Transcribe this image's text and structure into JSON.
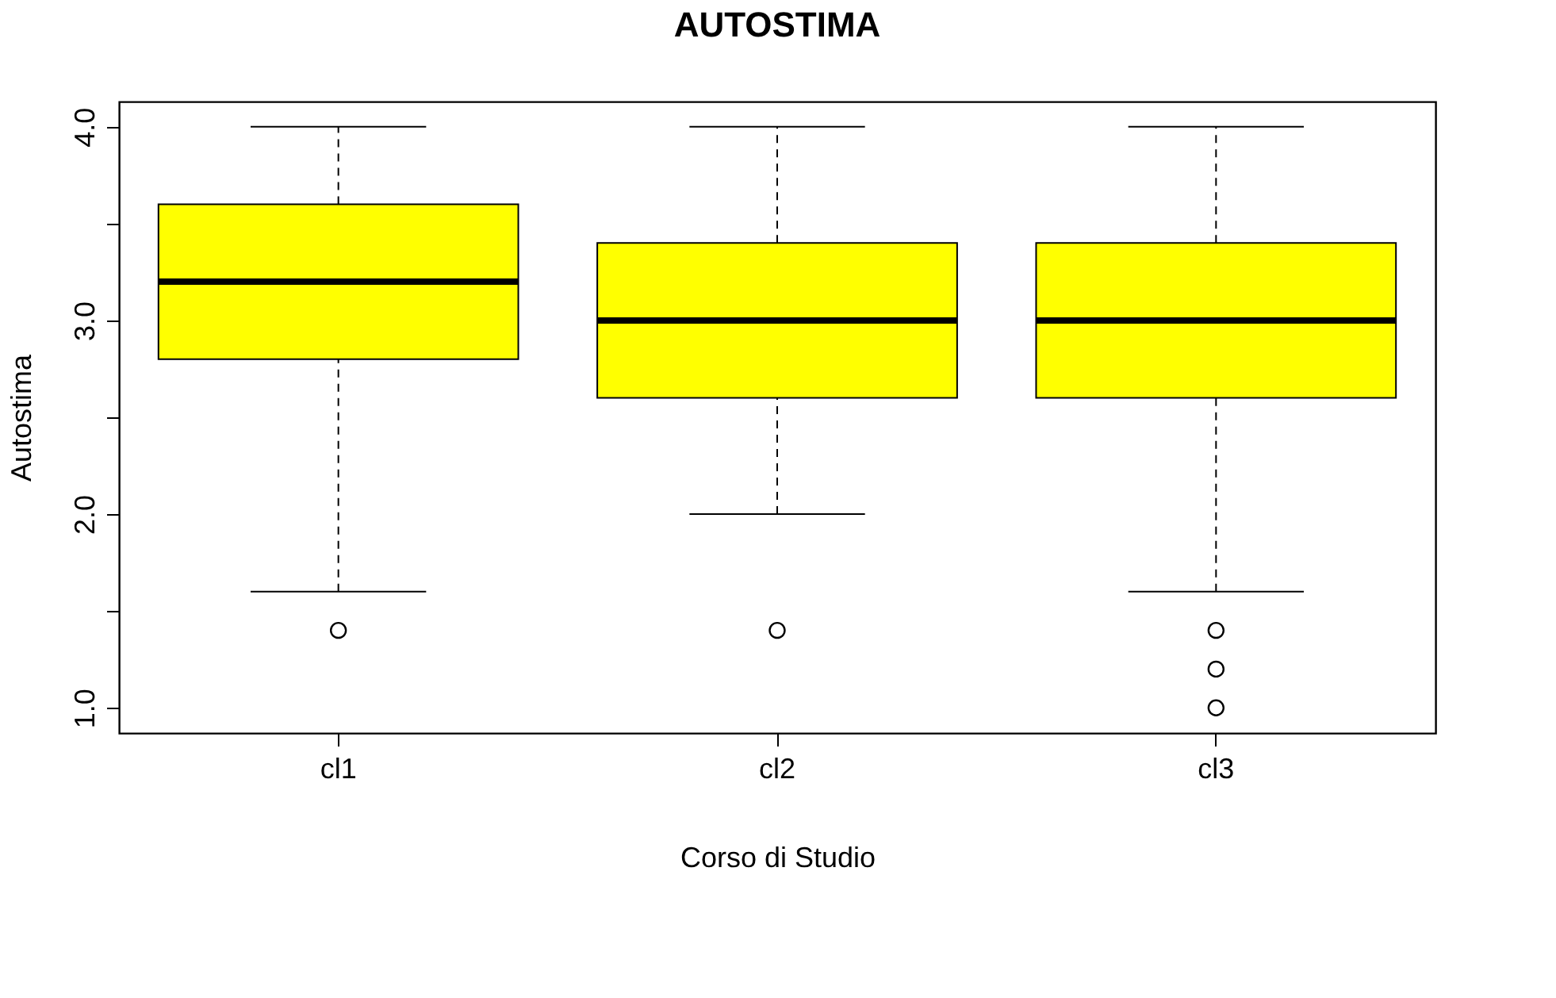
{
  "chart_data": {
    "type": "box",
    "title": "AUTOSTIMA",
    "xlabel": "Corso di Studio",
    "ylabel": "Autostima",
    "categories": [
      "cl1",
      "cl2",
      "cl3"
    ],
    "colors": [
      "#ffff00",
      "#ffff00",
      "#ffff00"
    ],
    "boxes": [
      {
        "low": 1.6,
        "q1": 2.8,
        "median": 3.2,
        "q3": 3.6,
        "high": 4.0,
        "outliers": [
          1.4
        ]
      },
      {
        "low": 2.0,
        "q1": 2.6,
        "median": 3.0,
        "q3": 3.4,
        "high": 4.0,
        "outliers": [
          1.4
        ]
      },
      {
        "low": 1.6,
        "q1": 2.6,
        "median": 3.0,
        "q3": 3.4,
        "high": 4.0,
        "outliers": [
          1.4,
          1.2,
          1.0
        ]
      }
    ],
    "ylim": [
      0.87,
      4.13
    ],
    "yticks": [
      {
        "value": 1,
        "label": "1.0"
      },
      {
        "value": 1.5,
        "label": null
      },
      {
        "value": 2,
        "label": "2.0"
      },
      {
        "value": 2.5,
        "label": null
      },
      {
        "value": 3,
        "label": "3.0"
      },
      {
        "value": 3.5,
        "label": null
      },
      {
        "value": 4,
        "label": "4.0"
      }
    ],
    "grid": false
  }
}
